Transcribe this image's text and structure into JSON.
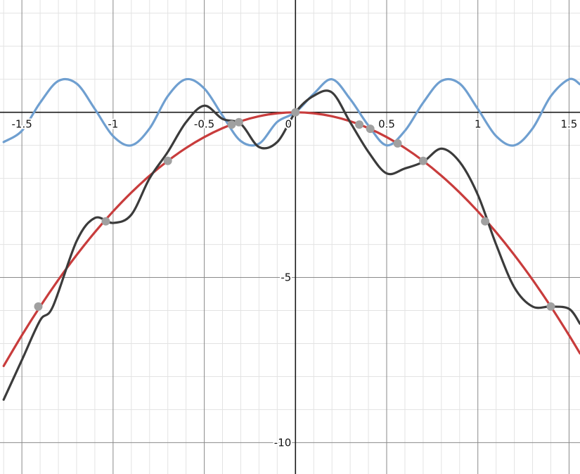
{
  "chart_data": {
    "type": "line",
    "title": "",
    "xlabel": "",
    "ylabel": "",
    "xlim": [
      -1.62,
      1.56
    ],
    "ylim": [
      -10.95,
      3.4
    ],
    "grid": true,
    "x_ticks": [
      {
        "value": -1.5,
        "label": "-1.5"
      },
      {
        "value": -1,
        "label": "-1"
      },
      {
        "value": -0.5,
        "label": "-0.5"
      },
      {
        "value": 0,
        "label": "0"
      },
      {
        "value": 0.5,
        "label": "0.5"
      },
      {
        "value": 1,
        "label": "1"
      },
      {
        "value": 1.5,
        "label": "1.5"
      }
    ],
    "y_ticks": [
      {
        "value": -5,
        "label": "-5"
      },
      {
        "value": -10,
        "label": "-10"
      }
    ],
    "series": [
      {
        "color": "#6f9fd0",
        "x": [
          -1.6,
          -1.5,
          -1.4,
          -1.3,
          -1.2,
          -1.1,
          -1.0,
          -0.9,
          -0.8,
          -0.7,
          -0.6,
          -0.5,
          -0.4,
          -0.3,
          -0.2,
          -0.1,
          0.0,
          0.1,
          0.2,
          0.3,
          0.4,
          0.5,
          0.6,
          0.7,
          0.8,
          0.9,
          1.0,
          1.1,
          1.2,
          1.3,
          1.4,
          1.5,
          1.56
        ],
        "y": [
          -0.9,
          -0.56,
          0.29,
          0.95,
          0.87,
          0.1,
          -0.72,
          -1.0,
          -0.49,
          0.49,
          1.0,
          0.72,
          -0.1,
          -0.87,
          -0.95,
          -0.29,
          0.0,
          0.56,
          1.0,
          0.4,
          -0.4,
          -1.0,
          -0.56,
          0.29,
          0.95,
          0.87,
          0.1,
          -0.72,
          -1.0,
          -0.49,
          0.49,
          1.0,
          0.85
        ]
      },
      {
        "color": "#c83c3c",
        "x": [
          -1.6,
          -1.5,
          -1.4,
          -1.3,
          -1.2,
          -1.1,
          -1.0,
          -0.9,
          -0.8,
          -0.7,
          -0.6,
          -0.5,
          -0.4,
          -0.3,
          -0.2,
          -0.1,
          0.0,
          0.1,
          0.2,
          0.3,
          0.4,
          0.5,
          0.6,
          0.7,
          0.8,
          0.9,
          1.0,
          1.1,
          1.2,
          1.3,
          1.4,
          1.5,
          1.56
        ],
        "y": [
          -7.68,
          -6.75,
          -5.88,
          -5.07,
          -4.32,
          -3.63,
          -3.0,
          -2.43,
          -1.92,
          -1.47,
          -1.08,
          -0.75,
          -0.48,
          -0.27,
          -0.12,
          -0.03,
          0.0,
          -0.03,
          -0.12,
          -0.27,
          -0.48,
          -0.75,
          -1.08,
          -1.47,
          -1.92,
          -2.43,
          -3.0,
          -3.63,
          -4.32,
          -5.07,
          -5.88,
          -6.75,
          -7.3
        ]
      },
      {
        "color": "#3b3b3b",
        "x": [
          -1.6,
          -1.5,
          -1.4,
          -1.33,
          -1.2,
          -1.1,
          -1.0,
          -0.9,
          -0.8,
          -0.7,
          -0.6,
          -0.5,
          -0.4,
          -0.3,
          -0.2,
          -0.1,
          0.0,
          0.1,
          0.2,
          0.3,
          0.4,
          0.5,
          0.6,
          0.7,
          0.8,
          0.9,
          1.0,
          1.1,
          1.2,
          1.3,
          1.4,
          1.5,
          1.56
        ],
        "y": [
          -8.7,
          -7.5,
          -6.3,
          -5.88,
          -3.9,
          -3.2,
          -3.35,
          -3.1,
          -2.0,
          -1.2,
          -0.3,
          0.2,
          -0.2,
          -0.35,
          -1.05,
          -0.9,
          0.0,
          0.5,
          0.6,
          -0.3,
          -1.2,
          -1.85,
          -1.7,
          -1.5,
          -1.1,
          -1.5,
          -2.5,
          -4.0,
          -5.3,
          -5.88,
          -5.88,
          -5.95,
          -6.4
        ]
      }
    ],
    "points": [
      {
        "x": -1.41,
        "y": -5.88
      },
      {
        "x": -1.04,
        "y": -3.3
      },
      {
        "x": -0.7,
        "y": -1.47
      },
      {
        "x": -0.35,
        "y": -0.37
      },
      {
        "x": -0.31,
        "y": -0.3
      },
      {
        "x": 0.0,
        "y": 0.0
      },
      {
        "x": 0.35,
        "y": -0.37
      },
      {
        "x": 0.41,
        "y": -0.5
      },
      {
        "x": 0.56,
        "y": -0.94
      },
      {
        "x": 0.7,
        "y": -1.47
      },
      {
        "x": 1.04,
        "y": -3.3
      },
      {
        "x": 1.4,
        "y": -5.88
      }
    ]
  }
}
